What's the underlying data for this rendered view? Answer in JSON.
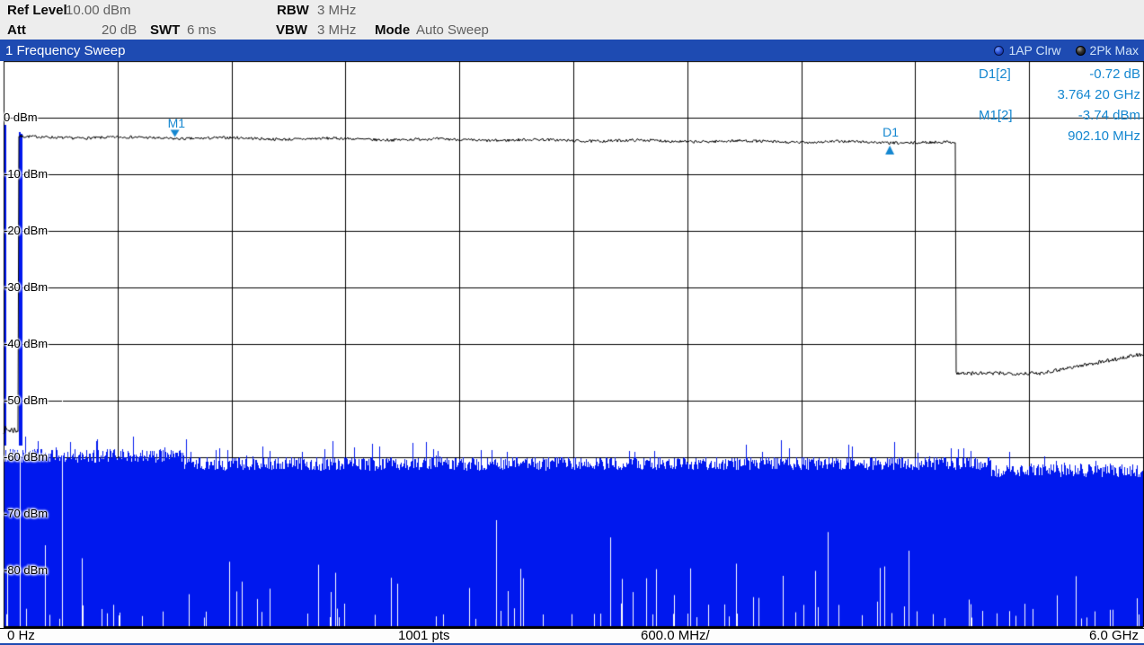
{
  "header": {
    "ref_level_label": "Ref Level",
    "ref_level_value": "10.00 dBm",
    "rbw_label": "RBW",
    "rbw_value": "3 MHz",
    "att_label": "Att",
    "att_value": "20 dB",
    "swt_label": "SWT",
    "swt_value": "6 ms",
    "vbw_label": "VBW",
    "vbw_value": "3 MHz",
    "mode_label": "Mode",
    "mode_value": "Auto Sweep"
  },
  "titlebar": {
    "title": "1 Frequency Sweep",
    "traces": [
      {
        "label": "1AP Clrw",
        "color": "#0018ee"
      },
      {
        "label": "2Pk Max",
        "color": "#000000"
      }
    ]
  },
  "marker_readouts": [
    {
      "name": "D1[2]",
      "value": "-0.72 dB"
    },
    {
      "name": "",
      "value": "3.764 20 GHz"
    },
    {
      "name": "M1[2]",
      "value": "-3.74 dBm"
    },
    {
      "name": "",
      "value": "902.10 MHz"
    }
  ],
  "bottombar": {
    "start": "0 Hz",
    "points": "1001 pts",
    "per_division": "600.0 MHz/",
    "stop": "6.0 GHz"
  },
  "colors": {
    "accent_blue": "#1e4bb2",
    "trace1_blue": "#0018ee",
    "trace2_black": "#000000",
    "marker_blue": "#1587d0",
    "grid": "#000000",
    "header_bg": "#ededed"
  },
  "chart_data": {
    "type": "line",
    "title": "1 Frequency Sweep",
    "x_axis": {
      "start_hz": 0,
      "stop_hz": 6000000000,
      "per_div_hz": 600000000,
      "sweep_points": 1001,
      "start_label": "0 Hz",
      "stop_label": "6.0 GHz"
    },
    "y_axis": {
      "top_dbm": 10,
      "bottom_dbm": -90,
      "per_div_db": 10,
      "ref_level_dbm": 10,
      "tick_labels": [
        {
          "dbm": 0,
          "label": "0 dBm"
        },
        {
          "dbm": -10,
          "label": "-10 dBm"
        },
        {
          "dbm": -20,
          "label": "-20 dBm"
        },
        {
          "dbm": -30,
          "label": "-30 dBm"
        },
        {
          "dbm": -40,
          "label": "-40 dBm"
        },
        {
          "dbm": -50,
          "label": "-50 dBm"
        },
        {
          "dbm": -60,
          "label": "-60 dBm"
        },
        {
          "dbm": -70,
          "label": "-70 dBm"
        },
        {
          "dbm": -80,
          "label": "-80 dBm"
        }
      ]
    },
    "grid": true,
    "traces": [
      {
        "name": "1AP Clrw",
        "detector": "Auto Peak",
        "mode": "Clear Write",
        "style": "filled-noise-band",
        "noise_top_segments_dbm": [
          {
            "f0": 0,
            "f1": 950000000,
            "level": -59.6
          },
          {
            "f0": 950000000,
            "f1": 5200000000,
            "level": -61.0
          },
          {
            "f0": 5200000000,
            "f1": 6000000000,
            "level": -62.2
          }
        ],
        "jitter_db": 1.2,
        "spike_prob": 0.07,
        "spike_db": 2.5,
        "fill_to_dbm": -90,
        "gap_prob": 0.085,
        "lo_feedthrough_spikes": [
          {
            "f": 6000000,
            "level_dbm": -1.2
          },
          {
            "f": 80000000,
            "level_dbm": -2.5
          },
          {
            "f": 90000000,
            "level_dbm": -2.9
          }
        ],
        "white_gap_columns": [
          {
            "f": 86000000,
            "from_dbm": -57
          },
          {
            "f": 308000000,
            "from_dbm": -50
          }
        ]
      },
      {
        "name": "2Pk Max",
        "detector": "Positive Peak",
        "mode": "Max Hold",
        "style": "thin-line",
        "left_stub": {
          "f0": 0,
          "f1": 76000000,
          "level_dbm": -55.1,
          "jitter_db": 0.7
        },
        "flat_segment": {
          "f0": 76000000,
          "f1": 5012000000,
          "level_start_dbm": -3.35,
          "level_end_dbm": -4.35,
          "jitter_db": 0.25
        },
        "tail_segment": {
          "f0": 5012000000,
          "f_knee": 5450000000,
          "floor_dbm": -45.1,
          "f1": 6000000000,
          "end_dbm": -41.7,
          "jitter_db": 0.35
        }
      }
    ],
    "markers": [
      {
        "id": "M1",
        "trace": 2,
        "freq_hz": 902100000,
        "level_dbm": -3.74,
        "freq_text": "902.10 MHz",
        "level_text": "-3.74 dBm",
        "shape": "triangle-down"
      },
      {
        "id": "D1",
        "trace": 2,
        "type": "delta",
        "abs_freq_hz": 4666300000,
        "abs_level_dbm": -4.46,
        "freq_text": "3.764 20 GHz",
        "level_text": "-0.72 dB",
        "shape": "triangle-up"
      }
    ]
  }
}
